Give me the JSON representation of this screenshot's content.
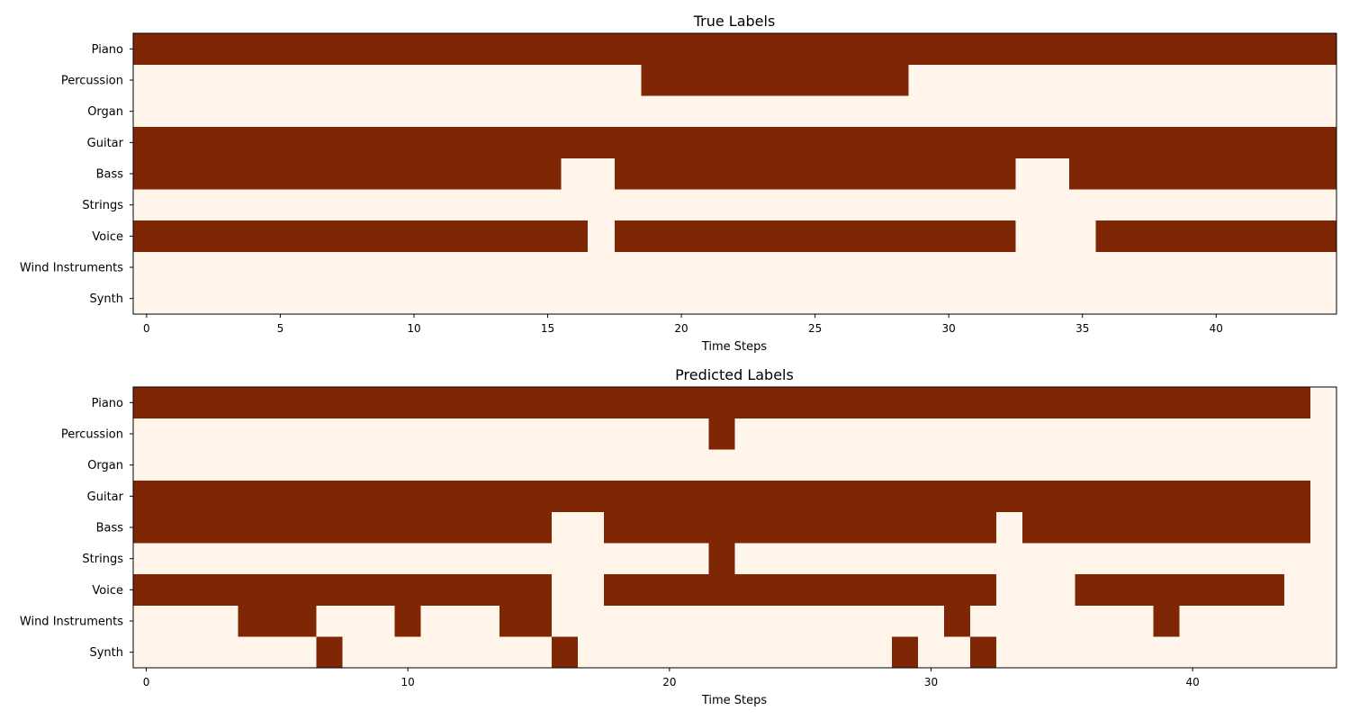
{
  "colors": {
    "on": "#7f2704",
    "off": "#fff5eb",
    "frame": "#000000"
  },
  "chart_data": [
    {
      "type": "heatmap",
      "title": "True Labels",
      "xlabel": "Time Steps",
      "ylabel": "",
      "xticks": [
        0,
        5,
        10,
        15,
        20,
        25,
        30,
        35,
        40
      ],
      "xlim": [
        -0.5,
        44.5
      ],
      "labels": [
        "Piano",
        "Percussion",
        "Organ",
        "Guitar",
        "Bass",
        "Strings",
        "Voice",
        "Wind Instruments",
        "Synth"
      ],
      "n_steps": 45,
      "active_ranges": [
        [
          [
            0,
            44
          ]
        ],
        [
          [
            19,
            28
          ]
        ],
        [],
        [
          [
            0,
            44
          ]
        ],
        [
          [
            0,
            15
          ],
          [
            18,
            32
          ],
          [
            35,
            44
          ]
        ],
        [],
        [
          [
            0,
            16
          ],
          [
            18,
            32
          ],
          [
            36,
            44
          ]
        ],
        [],
        []
      ]
    },
    {
      "type": "heatmap",
      "title": "Predicted Labels",
      "xlabel": "Time Steps",
      "ylabel": "",
      "xticks": [
        0,
        10,
        20,
        30,
        40
      ],
      "xlim": [
        -0.5,
        45.5
      ],
      "labels": [
        "Piano",
        "Percussion",
        "Organ",
        "Guitar",
        "Bass",
        "Strings",
        "Voice",
        "Wind Instruments",
        "Synth"
      ],
      "n_steps": 46,
      "active_ranges": [
        [
          [
            0,
            44
          ]
        ],
        [
          [
            22,
            22
          ]
        ],
        [],
        [
          [
            0,
            44
          ]
        ],
        [
          [
            0,
            15
          ],
          [
            18,
            32
          ],
          [
            34,
            44
          ]
        ],
        [
          [
            22,
            22
          ]
        ],
        [
          [
            0,
            15
          ],
          [
            18,
            32
          ],
          [
            36,
            43
          ]
        ],
        [
          [
            4,
            6
          ],
          [
            10,
            10
          ],
          [
            14,
            15
          ],
          [
            31,
            31
          ],
          [
            39,
            39
          ]
        ],
        [
          [
            7,
            7
          ],
          [
            16,
            16
          ],
          [
            29,
            29
          ],
          [
            32,
            32
          ]
        ]
      ]
    }
  ]
}
